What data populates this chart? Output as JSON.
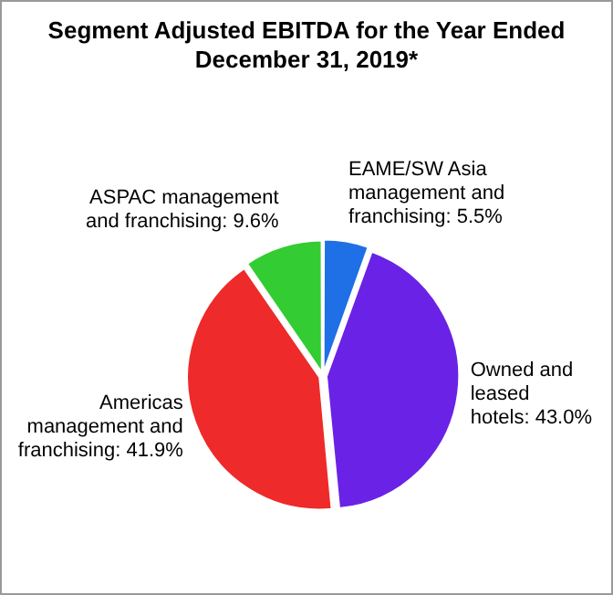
{
  "chart_data": {
    "type": "pie",
    "title": "Segment Adjusted EBITDA for the Year Ended December 31, 2019*",
    "categories": [
      "EAME/SW Asia management and franchising",
      "Owned and leased hotels",
      "Americas management and franchising",
      "ASPAC management and franchising"
    ],
    "values": [
      5.5,
      43.0,
      41.9,
      9.6
    ],
    "value_labels": [
      "5.5%",
      "43.0%",
      "41.9%",
      "9.6%"
    ],
    "colors": [
      "#1f6fe6",
      "#6a22e6",
      "#ee2a2a",
      "#33cc33"
    ]
  }
}
